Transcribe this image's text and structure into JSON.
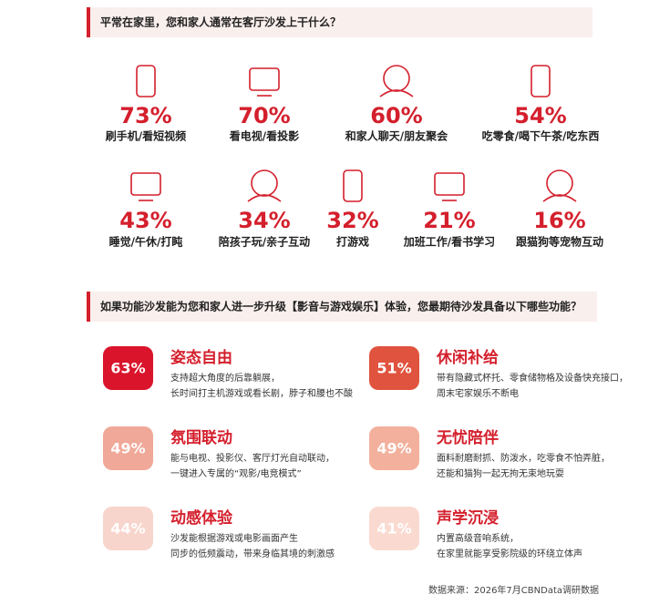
{
  "section1": {
    "title": "平常在家里，您和家人通常在客厅沙发上干什么？",
    "items": [
      {
        "percent": "73%",
        "label": "刷手机/看短视频"
      },
      {
        "percent": "70%",
        "label": "看电视/看投影"
      },
      {
        "percent": "60%",
        "label": "和家人聊天/朋友聚会"
      },
      {
        "percent": "54%",
        "label": "吃零食/喝下午茶/吃东西"
      },
      {
        "percent": "43%",
        "label": "睡觉/午休/打盹"
      },
      {
        "percent": "34%",
        "label": "陪孩子玩/亲子互动"
      },
      {
        "percent": "32%",
        "label": "打游戏"
      },
      {
        "percent": "21%",
        "label": "加班工作/看书学习"
      },
      {
        "percent": "16%",
        "label": "跟猫狗等宠物互动"
      }
    ]
  },
  "section2": {
    "title": "如果功能沙发能为您和家人进一步升级【影音与游戏娱乐】体验，您最期待沙发具备以下哪些功能？",
    "items": [
      {
        "percent": "63%",
        "title": "姿态自由",
        "desc": [
          "支持超大角度的后靠躺展，",
          "长时间打主机游戏或看长剧，脖子和腰也不酸"
        ]
      },
      {
        "percent": "51%",
        "title": "休闲补给",
        "desc": [
          "带有隐藏式杯托、零食储物格及设备快充接口，",
          "周末宅家娱乐不断电"
        ]
      },
      {
        "percent": "49%",
        "title": "氛围联动",
        "desc": [
          "能与电视、投影仪、客厅灯光自动联动，",
          "一键进入专属的“观影/电竞模式”"
        ]
      },
      {
        "percent": "49%",
        "title": "无忧陪伴",
        "desc": [
          "面料耐磨耐抓、防泼水，吃零食不怕弄脏，",
          "还能和猫狗一起无拘无束地玩耍"
        ]
      },
      {
        "percent": "44%",
        "title": "动感体验",
        "desc": [
          "沙发能根据游戏或电影画面产生",
          "同步的低频震动，带来身临其境的刺激感"
        ]
      },
      {
        "percent": "41%",
        "title": "声学沉浸",
        "desc": [
          "内置高级音响系统，",
          "在家里就能享受影院级的环绕立体声"
        ]
      }
    ]
  },
  "source": "数据来源：2026年7月CBNData调研数据"
}
